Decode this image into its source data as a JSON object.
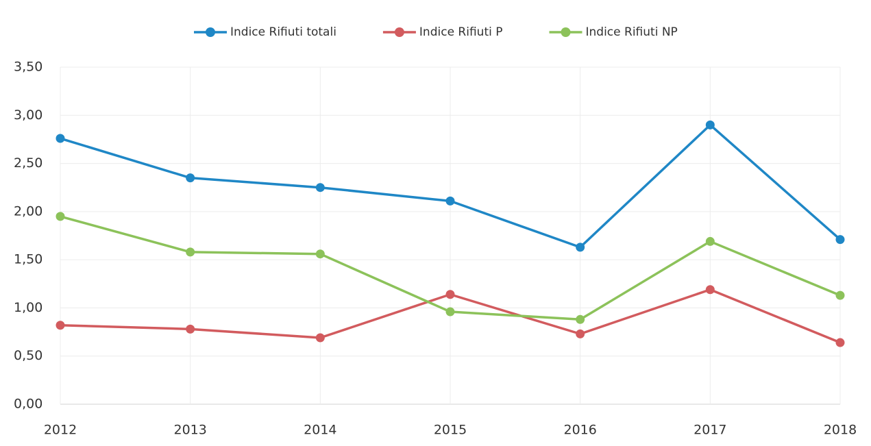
{
  "chart_data": {
    "type": "line",
    "categories": [
      "2012",
      "2013",
      "2014",
      "2015",
      "2016",
      "2017",
      "2018"
    ],
    "series": [
      {
        "name": "Indice Rifiuti totali",
        "color": "#1f87c6",
        "values": [
          2.76,
          2.35,
          2.25,
          2.11,
          1.63,
          2.9,
          1.71
        ]
      },
      {
        "name": "Indice Rifiuti P",
        "color": "#d25b5e",
        "values": [
          0.82,
          0.78,
          0.69,
          1.14,
          0.73,
          1.19,
          0.64
        ]
      },
      {
        "name": "Indice Rifiuti NP",
        "color": "#8cc25a",
        "values": [
          1.95,
          1.58,
          1.56,
          0.96,
          0.88,
          1.69,
          1.13
        ]
      }
    ],
    "ylim": [
      0,
      3.5
    ],
    "yticks": [
      {
        "value": 0,
        "label": "0,00"
      },
      {
        "value": 0.5,
        "label": "0,50"
      },
      {
        "value": 1,
        "label": "1,00"
      },
      {
        "value": 1.5,
        "label": "1,50"
      },
      {
        "value": 2,
        "label": "2,00"
      },
      {
        "value": 2.5,
        "label": "2,50"
      },
      {
        "value": 3,
        "label": "3,00"
      },
      {
        "value": 3.5,
        "label": "3,50"
      }
    ],
    "grid": true,
    "legend": "top"
  }
}
